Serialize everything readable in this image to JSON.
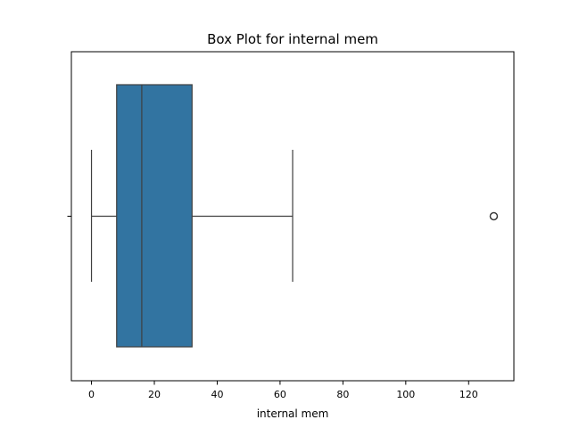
{
  "chart_data": {
    "type": "box",
    "title": "Box Plot for internal mem",
    "xlabel": "internal mem",
    "ylabel": "",
    "orientation": "horizontal",
    "xlim": [
      -6.4,
      134.4
    ],
    "x_ticks": [
      0,
      20,
      40,
      60,
      80,
      100,
      120
    ],
    "grid": false,
    "box": {
      "whisker_low": 0,
      "q1": 8,
      "median": 16,
      "q3": 32,
      "whisker_high": 64,
      "outliers": [
        128
      ]
    },
    "colors": {
      "box_fill": "#3274a1",
      "line": "#3f3f3f",
      "axis": "#000000"
    }
  }
}
